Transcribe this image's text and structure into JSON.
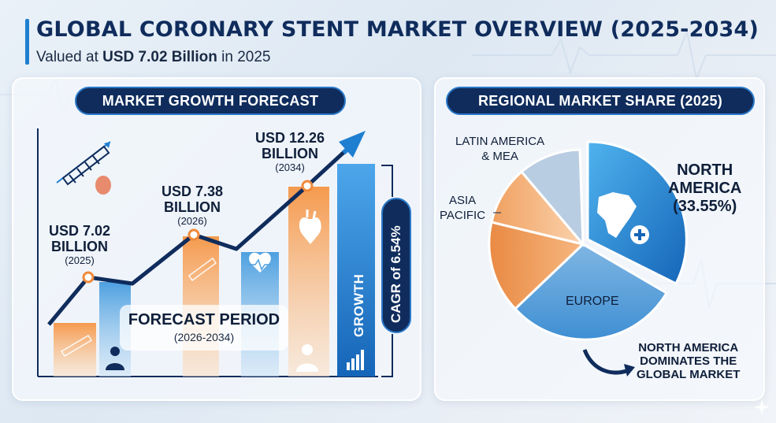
{
  "header": {
    "title": "GLOBAL CORONARY STENT MARKET OVERVIEW (2025-2034)",
    "subtitle_prefix": "Valued at ",
    "subtitle_value": "USD 7.02 Billion",
    "subtitle_suffix": " in 2025"
  },
  "growth_panel": {
    "title": "MARKET GROWTH FORECAST",
    "points": [
      {
        "value": "USD 7.02",
        "unit": "BILLION",
        "year": "(2025)"
      },
      {
        "value": "USD 7.38",
        "unit": "BILLION",
        "year": "(2026)"
      },
      {
        "value": "USD 12.26",
        "unit": "BILLION",
        "year": "(2034)"
      }
    ],
    "forecast_title": "FORECAST PERIOD",
    "forecast_range": "(2026-2034)",
    "growth_label": "GROWTH",
    "cagr_label": "CAGR of 6.54%"
  },
  "region_panel": {
    "title": "REGIONAL MARKET SHARE (2025)",
    "na_name_line1": "NORTH",
    "na_name_line2": "AMERICA",
    "na_share": "(33.55%)",
    "latam_line1": "LATIN AMERICA",
    "latam_line2": "& MEA",
    "asia_line1": "ASIA",
    "asia_line2": "PACIFIC",
    "europe": "EUROPE",
    "dominates_line1": "NORTH AMERICA",
    "dominates_line2": "DOMINATES THE",
    "dominates_line3": "GLOBAL MARKET"
  },
  "colors": {
    "navy": "#0f2c5c",
    "accent_blue": "#1e7fd1",
    "orange": "#f08a3c",
    "light_blue": "#5aa6e0"
  },
  "icons": [
    "stent-icon",
    "heart-icon",
    "doctor-icon",
    "heartbeat-icon",
    "growth-bars-icon",
    "north-america-map-icon",
    "plus-icon",
    "curved-arrow-icon"
  ]
}
